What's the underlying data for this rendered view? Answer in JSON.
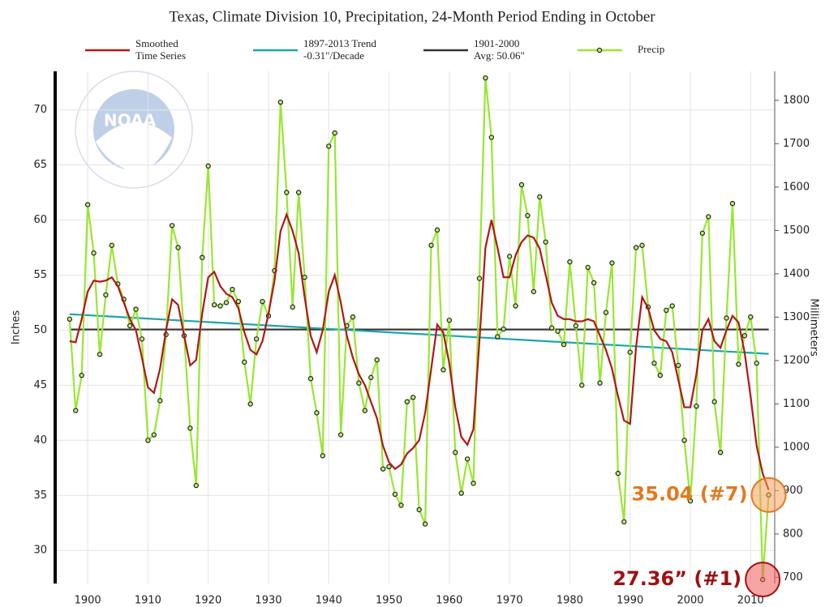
{
  "chart_data": {
    "type": "line",
    "title": "Texas, Climate Division 10, Precipitation, 24-Month Period Ending in October",
    "y_label": "Inches",
    "y2_label": "Millimeters",
    "logo": "NOAA",
    "x": [
      1897,
      1898,
      1899,
      1900,
      1901,
      1902,
      1903,
      1904,
      1905,
      1906,
      1907,
      1908,
      1909,
      1910,
      1911,
      1912,
      1913,
      1914,
      1915,
      1916,
      1917,
      1918,
      1919,
      1920,
      1921,
      1922,
      1923,
      1924,
      1925,
      1926,
      1927,
      1928,
      1929,
      1930,
      1931,
      1932,
      1933,
      1934,
      1935,
      1936,
      1937,
      1938,
      1939,
      1940,
      1941,
      1942,
      1943,
      1944,
      1945,
      1946,
      1947,
      1948,
      1949,
      1950,
      1951,
      1952,
      1953,
      1954,
      1955,
      1956,
      1957,
      1958,
      1959,
      1960,
      1961,
      1962,
      1963,
      1964,
      1965,
      1966,
      1967,
      1968,
      1969,
      1970,
      1971,
      1972,
      1973,
      1974,
      1975,
      1976,
      1977,
      1978,
      1979,
      1980,
      1981,
      1982,
      1983,
      1984,
      1985,
      1986,
      1987,
      1988,
      1989,
      1990,
      1991,
      1992,
      1993,
      1994,
      1995,
      1996,
      1997,
      1998,
      1999,
      2000,
      2001,
      2002,
      2003,
      2004,
      2005,
      2006,
      2007,
      2008,
      2009,
      2010,
      2011,
      2012,
      2013
    ],
    "series": [
      {
        "name": "Precip",
        "color": "#99e632",
        "marker": true,
        "values": [
          51,
          42.7,
          45.9,
          61.4,
          57,
          47.8,
          53.2,
          57.7,
          54.2,
          52.8,
          50.4,
          51.9,
          49.2,
          40,
          40.5,
          43.6,
          49.6,
          59.5,
          57.5,
          49.5,
          41.1,
          35.9,
          56.6,
          64.9,
          52.3,
          52.2,
          52.5,
          53.7,
          52.6,
          47.1,
          43.3,
          49.2,
          52.6,
          51.3,
          55.4,
          70.7,
          62.5,
          52.1,
          62.5,
          54.8,
          45.6,
          42.5,
          38.6,
          66.7,
          67.9,
          40.5,
          50.4,
          51.2,
          45.2,
          42.7,
          45.7,
          47.3,
          37.4,
          37.6,
          35.1,
          34.1,
          43.5,
          43.9,
          33.7,
          32.4,
          57.7,
          59.1,
          46.4,
          50.9,
          38.9,
          35.2,
          38.3,
          36.1,
          54.7,
          72.9,
          67.5,
          49.4,
          50.1,
          56.7,
          52.2,
          63.2,
          60.4,
          53.5,
          62.1,
          58,
          50.2,
          49.9,
          48.7,
          56.2,
          50.4,
          45,
          55.7,
          54.3,
          45.2,
          51.6,
          56.1,
          37,
          32.6,
          48,
          57.5,
          57.7,
          52.1,
          47,
          45.9,
          51.8,
          52.2,
          46.8,
          40,
          34.5,
          43.1,
          58.8,
          60.3,
          43.5,
          38.9,
          51.1,
          61.5,
          46.9,
          49.5,
          51.2,
          47,
          27.36,
          35.04
        ]
      },
      {
        "name": "Smoothed Time Series",
        "name_lines": [
          "Smoothed",
          "Time Series"
        ],
        "color": "#b01818",
        "values": [
          49,
          48.9,
          51,
          53.5,
          54.5,
          54.4,
          54.5,
          54.8,
          54,
          52.5,
          51,
          50,
          47.5,
          44.8,
          44.3,
          46.5,
          50,
          52.8,
          52.3,
          49.5,
          46.8,
          47.3,
          51.5,
          54.8,
          55.3,
          54,
          53.3,
          53,
          52,
          49.8,
          48.2,
          47.8,
          49,
          51.5,
          54.5,
          59,
          60.5,
          59,
          57,
          53,
          49.5,
          48,
          50,
          53.5,
          55,
          52.5,
          49.5,
          47.5,
          46,
          45,
          43.5,
          42,
          39.5,
          38,
          37.4,
          37.8,
          38.8,
          39.3,
          40,
          42.5,
          46.5,
          50.5,
          49.8,
          47,
          43,
          40.3,
          39.6,
          41,
          49,
          57.5,
          60,
          57.5,
          54.8,
          54.8,
          56.8,
          58,
          58.6,
          58.4,
          57.4,
          55,
          52.5,
          51.3,
          51,
          51,
          50.8,
          50.8,
          51,
          50.8,
          49.5,
          48.2,
          46.5,
          44,
          41.8,
          41.5,
          48.5,
          53,
          52,
          50,
          49.2,
          49,
          48,
          45.5,
          43,
          43,
          46,
          50,
          51,
          49,
          48.4,
          50,
          51.3,
          50.7,
          48,
          44,
          39.5,
          37,
          35.5
        ]
      },
      {
        "name": "1897-2013 Trend",
        "legend_note": "-0.31\"/Decade",
        "color": "#1aa5b0",
        "x": [
          1897,
          2013
        ],
        "values": [
          51.45,
          47.85
        ]
      },
      {
        "name": "1901-2000",
        "legend_note": "Avg: 50.06\"",
        "color": "#333333",
        "x": [
          1897,
          2013
        ],
        "values": [
          50.06,
          50.06
        ]
      }
    ],
    "annotations": [
      {
        "text": "35.04 (#7)",
        "x": 2013,
        "y": 35.04,
        "color": "#e07a20",
        "fill": "rgba(245,160,90,0.55)"
      },
      {
        "text": "27.36” (#1)",
        "x": 2012,
        "y": 27.36,
        "color": "#a01010",
        "fill": "rgba(240,90,90,0.55)"
      }
    ],
    "xlim": [
      1894.6,
      2014
    ],
    "xticks": [
      1900,
      1910,
      1920,
      1930,
      1940,
      1950,
      1960,
      1970,
      1980,
      1990,
      2000,
      2010
    ],
    "ylim": [
      27,
      73.5
    ],
    "yticks": [
      30,
      35,
      40,
      45,
      50,
      55,
      60,
      65,
      70
    ],
    "y2lim": [
      685.8,
      1866.9
    ],
    "y2ticks": [
      700,
      800,
      900,
      1000,
      1100,
      1200,
      1300,
      1400,
      1500,
      1600,
      1700,
      1800
    ],
    "grid": true
  }
}
